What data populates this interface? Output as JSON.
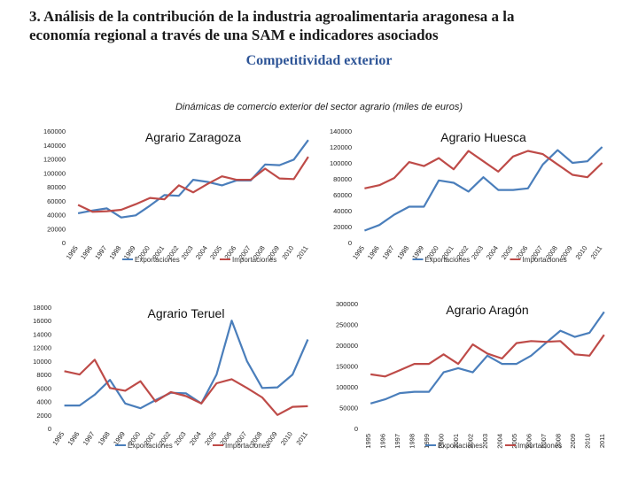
{
  "header": {
    "title_line1": "3. Análisis de la contribución de la industria agroalimentaria aragonesa a la",
    "title_line2": "economía regional a través de una SAM e indicadores asociados",
    "subtitle": "Competitividad exterior",
    "caption": "Dinámicas de comercio exterior del sector agrario (miles de euros)"
  },
  "colors": {
    "exports": "#4a7ebb",
    "imports": "#be4b48"
  },
  "chart_data": [
    {
      "type": "line",
      "title": "Agrario Zaragoza",
      "categories": [
        "1995",
        "1996",
        "1997",
        "1998",
        "1999",
        "2000",
        "2001",
        "2002",
        "2003",
        "2004",
        "2005",
        "2006",
        "2007",
        "2008",
        "2009",
        "2010",
        "2011"
      ],
      "ylim": [
        0,
        160000
      ],
      "yticks": [
        "0",
        "20000",
        "40000",
        "60000",
        "80000",
        "100000",
        "120000",
        "140000",
        "160000"
      ],
      "series": [
        {
          "name": "Exportaciones",
          "values": [
            42000,
            46000,
            49000,
            36000,
            39000,
            53000,
            68000,
            67000,
            90000,
            87000,
            82000,
            89000,
            89000,
            112000,
            111000,
            119000,
            147000
          ]
        },
        {
          "name": "Importaciones",
          "values": [
            54000,
            44000,
            45000,
            47000,
            55000,
            64000,
            62000,
            82000,
            72000,
            84000,
            95000,
            90000,
            90000,
            106000,
            92000,
            91000,
            123000
          ]
        }
      ]
    },
    {
      "type": "line",
      "title": "Agrario Huesca",
      "categories": [
        "1995",
        "1996",
        "1997",
        "1998",
        "1999",
        "2000",
        "2001",
        "2002",
        "2003",
        "2004",
        "2005",
        "2006",
        "2007",
        "2008",
        "2009",
        "2010",
        "2011"
      ],
      "ylim": [
        0,
        140000
      ],
      "yticks": [
        "0",
        "20000",
        "40000",
        "60000",
        "80000",
        "100000",
        "120000",
        "140000"
      ],
      "series": [
        {
          "name": "Exportaciones",
          "values": [
            15000,
            22000,
            35000,
            45000,
            45000,
            78000,
            75000,
            64000,
            82000,
            66000,
            66000,
            68000,
            98000,
            116000,
            100000,
            102000,
            120000
          ]
        },
        {
          "name": "Importaciones",
          "values": [
            68000,
            72000,
            81000,
            101000,
            96000,
            106000,
            92000,
            115000,
            102000,
            89000,
            108000,
            115000,
            111000,
            98000,
            85000,
            82000,
            100000
          ]
        }
      ]
    },
    {
      "type": "line",
      "title": "Agrario Teruel",
      "categories": [
        "1995",
        "1996",
        "1997",
        "1998",
        "1999",
        "2000",
        "2001",
        "2002",
        "2003",
        "2004",
        "2005",
        "2006",
        "2007",
        "2008",
        "2009",
        "2010",
        "2011"
      ],
      "ylim": [
        0,
        18000
      ],
      "yticks": [
        "0",
        "2000",
        "4000",
        "6000",
        "8000",
        "10000",
        "12000",
        "14000",
        "16000",
        "18000"
      ],
      "series": [
        {
          "name": "Exportaciones",
          "values": [
            3400,
            3400,
            5000,
            7200,
            3700,
            3000,
            4200,
            5300,
            5200,
            3700,
            8000,
            16000,
            10000,
            6000,
            6100,
            8000,
            13200
          ]
        },
        {
          "name": "Importaciones",
          "values": [
            8500,
            8000,
            10200,
            6000,
            5600,
            7000,
            4000,
            5400,
            4800,
            3700,
            6700,
            7300,
            6000,
            4600,
            2000,
            3200,
            3300
          ]
        }
      ]
    },
    {
      "type": "line",
      "title": "Agrario Aragón",
      "categories": [
        "1995",
        "1996",
        "1997",
        "1998",
        "1999",
        "2000",
        "2001",
        "2002",
        "2003",
        "2004",
        "2005",
        "2006",
        "2007",
        "2008",
        "2009",
        "2010",
        "2011"
      ],
      "ylim": [
        0,
        300000
      ],
      "yticks": [
        "0",
        "50000",
        "100000",
        "150000",
        "200000",
        "250000",
        "300000"
      ],
      "series": [
        {
          "name": "Exportaciones",
          "values": [
            60000,
            70000,
            85000,
            88000,
            88000,
            135000,
            145000,
            135000,
            175000,
            155000,
            155000,
            175000,
            205000,
            235000,
            220000,
            230000,
            280000
          ]
        },
        {
          "name": "Importaciones",
          "values": [
            130000,
            125000,
            140000,
            155000,
            155000,
            178000,
            155000,
            202000,
            180000,
            168000,
            205000,
            210000,
            208000,
            210000,
            178000,
            175000,
            225000
          ]
        }
      ]
    }
  ]
}
